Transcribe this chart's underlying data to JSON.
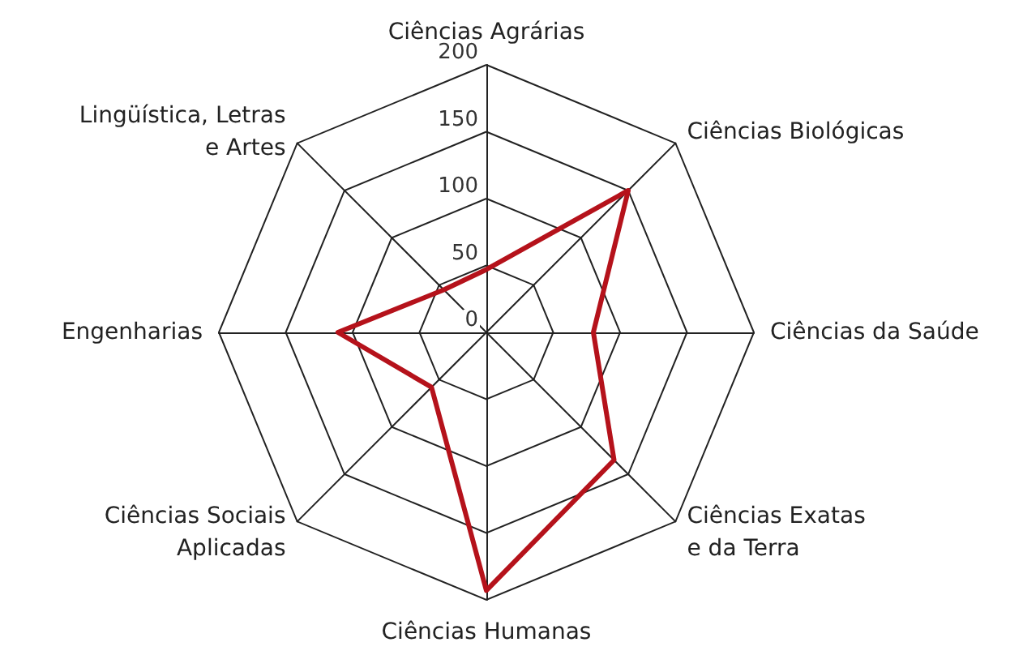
{
  "chart_data": {
    "type": "radar",
    "categories": [
      "Ciências Agrárias",
      "Ciências Biológicas",
      "Ciências da Saúde",
      "Ciências Exatas\ne da Terra",
      "Ciências Humanas",
      "Ciências Sociais\nAplicadas",
      "Engenharias",
      "Lingüística, Letras\ne Artes"
    ],
    "series": [
      {
        "color": "#b5121b",
        "values": [
          47,
          150,
          80,
          135,
          193,
          58,
          111,
          45
        ]
      }
    ],
    "ylim": [
      0,
      200
    ],
    "yticks": [
      0,
      50,
      100,
      150,
      200
    ],
    "marker": "none"
  }
}
